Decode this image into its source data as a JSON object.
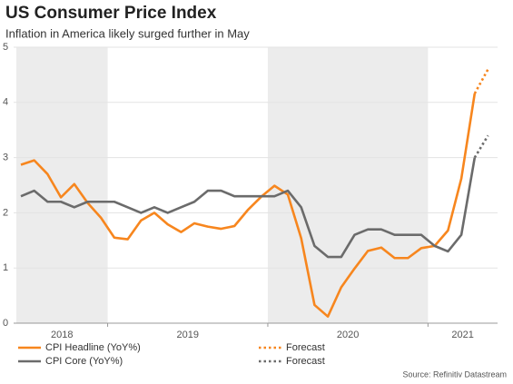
{
  "chart_data": {
    "type": "line",
    "title": "US Consumer Price Index",
    "subtitle": "Inflation in America likely surged further in May",
    "source": "Source: Refinitiv Datastream",
    "categories": [
      "2018",
      null,
      null,
      null,
      null,
      null,
      null,
      "2019",
      null,
      null,
      null,
      null,
      null,
      null,
      null,
      null,
      null,
      null,
      null,
      "2020",
      null,
      null,
      null,
      null,
      null,
      null,
      null,
      null,
      null,
      null,
      null,
      "2021",
      null,
      null,
      null,
      null
    ],
    "series": [
      {
        "name": "CPI Headline (YoY%)",
        "color": "#f7861e",
        "style": "solid",
        "values": [
          2.87,
          2.95,
          2.7,
          2.28,
          2.52,
          2.18,
          1.91,
          1.55,
          1.52,
          1.86,
          2.0,
          1.79,
          1.65,
          1.81,
          1.75,
          1.71,
          1.76,
          2.05,
          2.29,
          2.49,
          2.33,
          1.54,
          0.33,
          0.12,
          0.65,
          0.99,
          1.31,
          1.37,
          1.18,
          1.18,
          1.36,
          1.4,
          1.68,
          2.62,
          4.16,
          null
        ]
      },
      {
        "name": "CPI Core (YoY%)",
        "color": "#6b6b6b",
        "style": "solid",
        "values": [
          2.3,
          2.4,
          2.2,
          2.2,
          2.1,
          2.2,
          2.2,
          2.2,
          2.1,
          2.0,
          2.1,
          2.0,
          2.1,
          2.2,
          2.4,
          2.4,
          2.3,
          2.3,
          2.3,
          2.3,
          2.4,
          2.1,
          1.4,
          1.2,
          1.2,
          1.6,
          1.7,
          1.7,
          1.6,
          1.6,
          1.6,
          1.4,
          1.3,
          1.6,
          3.0,
          null
        ]
      },
      {
        "name": "Forecast",
        "color": "#f7861e",
        "style": "dotted",
        "values": [
          null,
          null,
          null,
          null,
          null,
          null,
          null,
          null,
          null,
          null,
          null,
          null,
          null,
          null,
          null,
          null,
          null,
          null,
          null,
          null,
          null,
          null,
          null,
          null,
          null,
          null,
          null,
          null,
          null,
          null,
          null,
          null,
          null,
          null,
          4.16,
          4.6
        ]
      },
      {
        "name": "Forecast",
        "color": "#6b6b6b",
        "style": "dotted",
        "values": [
          null,
          null,
          null,
          null,
          null,
          null,
          null,
          null,
          null,
          null,
          null,
          null,
          null,
          null,
          null,
          null,
          null,
          null,
          null,
          null,
          null,
          null,
          null,
          null,
          null,
          null,
          null,
          null,
          null,
          null,
          null,
          null,
          null,
          null,
          3.0,
          3.4
        ]
      }
    ],
    "ylim": [
      0,
      5
    ],
    "yticks": [
      0,
      1,
      2,
      3,
      4,
      5
    ],
    "grid": true,
    "band_color": "#ececec",
    "legend": "bottom"
  }
}
